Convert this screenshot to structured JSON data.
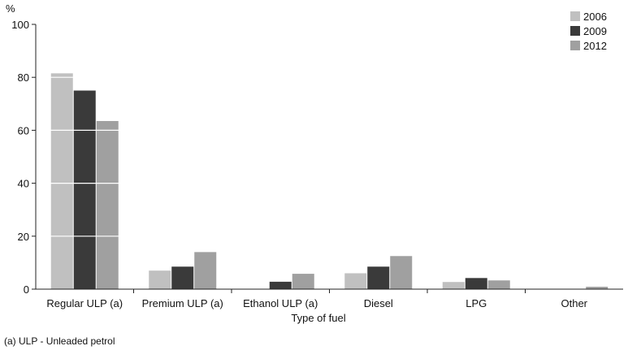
{
  "chart_data": {
    "type": "bar",
    "title": "",
    "xlabel": "Type of fuel",
    "ylabel": "%",
    "ylim": [
      0,
      100
    ],
    "yticks": [
      0,
      20,
      40,
      60,
      80,
      100
    ],
    "grid": "white horizontal lines drawn over bars",
    "legend_position": "top-right",
    "categories": [
      "Regular ULP (a)",
      "Premium ULP (a)",
      "Ethanol ULP (a)",
      "Diesel",
      "LPG",
      "Other"
    ],
    "series": [
      {
        "name": "2006",
        "color": "#c0c0c0",
        "values": [
          81.5,
          7,
          0,
          6,
          2.7,
          0
        ]
      },
      {
        "name": "2009",
        "color": "#3a3a3a",
        "values": [
          75,
          8.5,
          2.8,
          8.5,
          4.2,
          0
        ]
      },
      {
        "name": "2012",
        "color": "#a0a0a0",
        "values": [
          63.5,
          14,
          5.8,
          12.5,
          3.3,
          0.9
        ]
      }
    ],
    "footnote": "(a) ULP - Unleaded petrol"
  }
}
